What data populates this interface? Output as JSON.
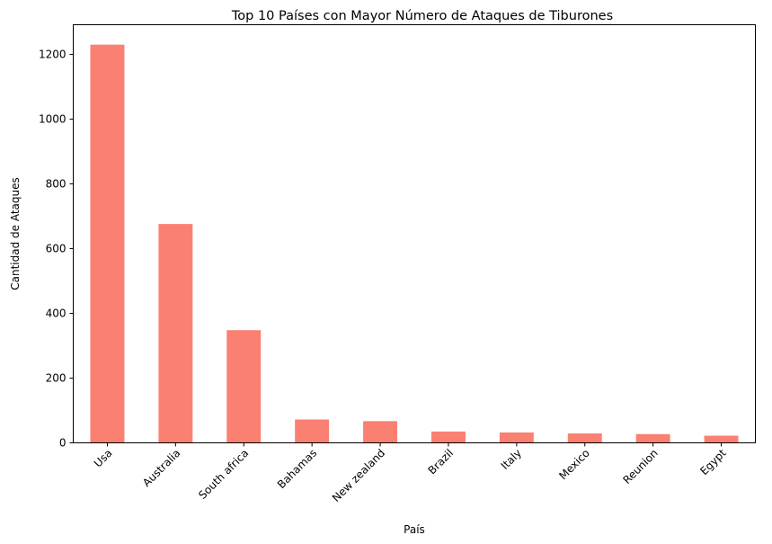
{
  "chart_data": {
    "type": "bar",
    "title": "Top 10 Países con Mayor Número de Ataques de Tiburones",
    "xlabel": "País",
    "ylabel": "Cantidad de Ataques",
    "categories": [
      "Usa",
      "Australia",
      "South africa",
      "Bahamas",
      "New zealand",
      "Brazil",
      "Italy",
      "Mexico",
      "Reunion",
      "Egypt"
    ],
    "values": [
      1230,
      676,
      348,
      72,
      67,
      35,
      32,
      29,
      27,
      22
    ],
    "ylim": [
      0,
      1291.5
    ],
    "yticks": [
      0,
      200,
      400,
      600,
      800,
      1000,
      1200
    ],
    "bar_color": "#fa8072",
    "grid": false,
    "legend": "none"
  }
}
